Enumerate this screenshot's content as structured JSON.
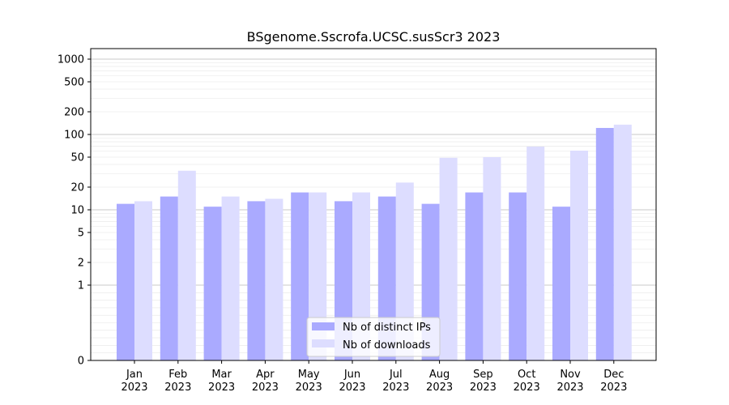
{
  "chart_data": {
    "type": "bar",
    "title": "BSgenome.Sscrofa.UCSC.susScr3 2023",
    "xlabel": "",
    "ylabel": "",
    "yscale": "symlog",
    "yticks": [
      0,
      1,
      2,
      5,
      10,
      20,
      50,
      100,
      200,
      500,
      1000
    ],
    "ylim": [
      0,
      1500
    ],
    "grid": "horizontal",
    "legend_position": "lower-center",
    "categories": [
      [
        "Jan",
        "2023"
      ],
      [
        "Feb",
        "2023"
      ],
      [
        "Mar",
        "2023"
      ],
      [
        "Apr",
        "2023"
      ],
      [
        "May",
        "2023"
      ],
      [
        "Jun",
        "2023"
      ],
      [
        "Jul",
        "2023"
      ],
      [
        "Aug",
        "2023"
      ],
      [
        "Sep",
        "2023"
      ],
      [
        "Oct",
        "2023"
      ],
      [
        "Nov",
        "2023"
      ],
      [
        "Dec",
        "2023"
      ]
    ],
    "series": [
      {
        "name": "Nb of distinct IPs",
        "color": "#aaaaff",
        "values": [
          12,
          15,
          11,
          13,
          17,
          13,
          15,
          12,
          17,
          17,
          11,
          122
        ]
      },
      {
        "name": "Nb of downloads",
        "color": "#ddddff",
        "values": [
          13,
          33,
          15,
          14,
          17,
          17,
          23,
          49,
          50,
          69,
          61,
          135
        ]
      }
    ]
  }
}
